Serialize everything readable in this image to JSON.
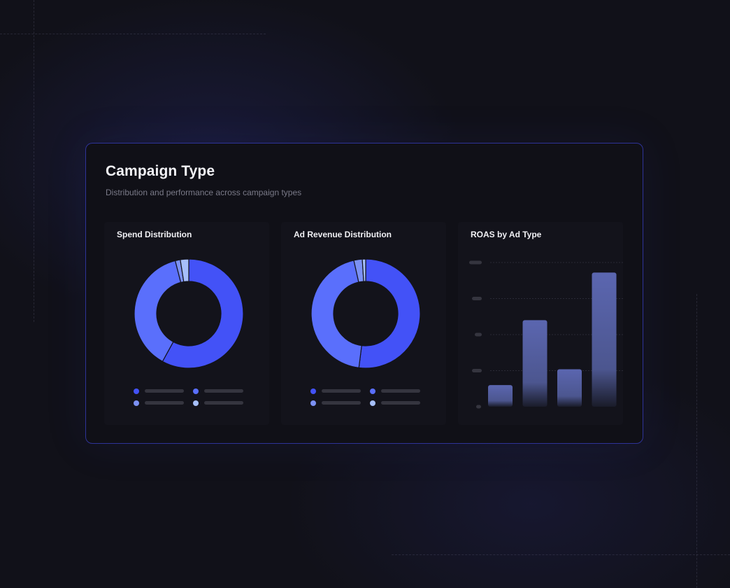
{
  "card": {
    "title": "Campaign Type",
    "subtitle": "Distribution and performance across campaign types"
  },
  "colors": {
    "accent": "#4352f7",
    "series": [
      "#4352f7",
      "#5a6ffc",
      "#7c91f4",
      "#a6bffb"
    ],
    "bar_top": "#5b66b0",
    "border": "#2e3398"
  },
  "chart_data": [
    {
      "type": "pie",
      "title": "Spend Distribution",
      "donut": true,
      "values": [
        58,
        38,
        1.5,
        2.5
      ],
      "colors": [
        "#4352f7",
        "#5a6ffc",
        "#7c91f4",
        "#a6bffb"
      ],
      "legend_placement": "bottom"
    },
    {
      "type": "pie",
      "title": "Ad Revenue Distribution",
      "donut": true,
      "values": [
        52,
        44.5,
        2.5,
        1
      ],
      "colors": [
        "#4352f7",
        "#5a6ffc",
        "#7c91f4",
        "#a6bffb"
      ],
      "legend_placement": "bottom"
    },
    {
      "type": "bar",
      "title": "ROAS by Ad Type",
      "values": [
        0.15,
        0.6,
        0.26,
        0.93
      ],
      "ylim": [
        0,
        1
      ],
      "grid": true
    }
  ]
}
